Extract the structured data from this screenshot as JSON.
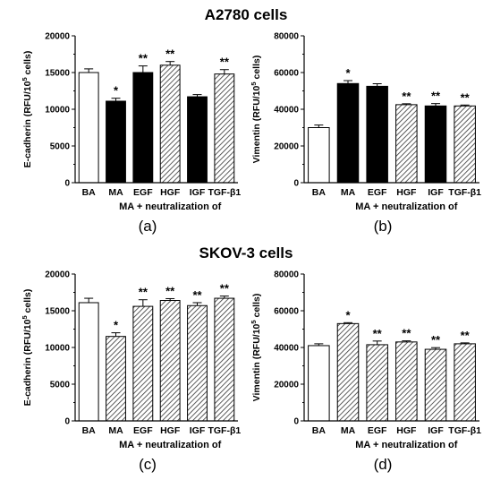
{
  "figure": {
    "titles": [
      "A2780 cells",
      "SKOV-3 cells"
    ]
  },
  "chart_data": [
    {
      "panel": "(a)",
      "type": "bar",
      "title": "",
      "ylabel": "E-cadherin (RFU/10^5 cells)",
      "ylabel_main": "E-cadherin (RFU/10",
      "ylabel_sup": "5",
      "ylabel_tail": " cells)",
      "xlabel": "MA + neutralization of",
      "ylim": [
        0,
        20000
      ],
      "yticks": [
        0,
        5000,
        10000,
        15000,
        20000
      ],
      "categories": [
        "BA",
        "MA",
        "EGF",
        "HGF",
        "IGF",
        "TGF-β1"
      ],
      "values": [
        15000,
        11100,
        15000,
        16000,
        11700,
        14800
      ],
      "errors": [
        500,
        400,
        900,
        500,
        300,
        600
      ],
      "fills": [
        "white",
        "black",
        "black",
        "hatch",
        "black",
        "hatch"
      ],
      "significance": [
        "",
        "*",
        "**",
        "**",
        "",
        "**"
      ]
    },
    {
      "panel": "(b)",
      "type": "bar",
      "title": "",
      "ylabel": "Vimentin (RFU/10^5 cells)",
      "ylabel_main": "Vimentin (RFU/10",
      "ylabel_sup": "5",
      "ylabel_tail": " cells)",
      "xlabel": "MA + neutralization of",
      "ylim": [
        0,
        80000
      ],
      "yticks": [
        0,
        20000,
        40000,
        60000,
        80000
      ],
      "categories": [
        "BA",
        "MA",
        "EGF",
        "HGF",
        "IGF",
        "TGF-β1"
      ],
      "values": [
        30000,
        54000,
        52500,
        42500,
        41800,
        41800
      ],
      "errors": [
        1400,
        1600,
        1400,
        500,
        1300,
        500
      ],
      "fills": [
        "white",
        "black",
        "black",
        "hatch",
        "black",
        "hatch"
      ],
      "significance": [
        "",
        "*",
        "",
        "**",
        "**",
        "**"
      ]
    },
    {
      "panel": "(c)",
      "type": "bar",
      "title": "",
      "ylabel": "E-cadherin (RFU/10^5 cells)",
      "ylabel_main": "E-cadherin (RFU/10",
      "ylabel_sup": "5",
      "ylabel_tail": " cells)",
      "xlabel": "MA + neutralization of",
      "ylim": [
        0,
        20000
      ],
      "yticks": [
        0,
        5000,
        10000,
        15000,
        20000
      ],
      "categories": [
        "BA",
        "MA",
        "EGF",
        "HGF",
        "IGF",
        "TGF-β1"
      ],
      "values": [
        16100,
        11500,
        15600,
        16400,
        15700,
        16700
      ],
      "errors": [
        600,
        500,
        900,
        250,
        400,
        300
      ],
      "fills": [
        "white",
        "hatch",
        "hatch",
        "hatch",
        "hatch",
        "hatch"
      ],
      "significance": [
        "",
        "*",
        "**",
        "**",
        "**",
        "**"
      ]
    },
    {
      "panel": "(d)",
      "type": "bar",
      "title": "",
      "ylabel": "Vimentin (RFU/10^5 cells)",
      "ylabel_main": "Vimentin (RFU/10",
      "ylabel_sup": "5",
      "ylabel_tail": " cells)",
      "xlabel": "MA + neutralization of",
      "ylim": [
        0,
        80000
      ],
      "yticks": [
        0,
        20000,
        40000,
        60000,
        80000
      ],
      "categories": [
        "BA",
        "MA",
        "EGF",
        "HGF",
        "IGF",
        "TGF-β1"
      ],
      "values": [
        41000,
        53000,
        41500,
        43000,
        39000,
        42000
      ],
      "errors": [
        1000,
        500,
        2000,
        600,
        900,
        500
      ],
      "fills": [
        "white",
        "hatch",
        "hatch",
        "hatch",
        "hatch",
        "hatch"
      ],
      "significance": [
        "",
        "*",
        "**",
        "**",
        "**",
        "**"
      ]
    }
  ]
}
